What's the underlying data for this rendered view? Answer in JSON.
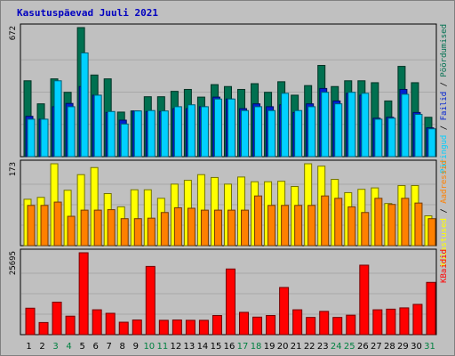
{
  "title": "Kasutuspäevad Juuli 2021",
  "colors": {
    "background": "#c0c0c0",
    "title": "#0000c0",
    "pages": "#007050",
    "files": "#0020d0",
    "hits": "#00d0ff",
    "visits": "#ffff00",
    "sites": "#ff8000",
    "kbytes": "#ff0000",
    "day_weekday": "#000000",
    "day_weekend": "#008040"
  },
  "legend": {
    "top": [
      {
        "label": "Päringud",
        "color": "#00d0ff"
      },
      {
        "sep": " / "
      },
      {
        "label": "Failid",
        "color": "#0020d0"
      },
      {
        "sep": " / "
      },
      {
        "label": "Pöördumised",
        "color": "#007050"
      }
    ],
    "middle": [
      {
        "label": "Külastused",
        "color": "#ffff00"
      },
      {
        "sep": " / "
      },
      {
        "label": "Aadressid",
        "color": "#ff8000"
      }
    ],
    "bottom": [
      {
        "label": "KBaidid",
        "color": "#ff0000"
      }
    ]
  },
  "chart_data": [
    {
      "type": "bar",
      "panel": "top",
      "ymax_label": "672",
      "ylim": [
        0,
        672
      ],
      "categories": [
        "1",
        "2",
        "3",
        "4",
        "5",
        "6",
        "7",
        "8",
        "9",
        "10",
        "11",
        "12",
        "13",
        "14",
        "15",
        "16",
        "17",
        "18",
        "19",
        "20",
        "21",
        "22",
        "23",
        "24",
        "25",
        "26",
        "27",
        "28",
        "29",
        "30",
        "31"
      ],
      "series": [
        {
          "name": "Pöördumised",
          "values": [
            395,
            275,
            405,
            335,
            672,
            425,
            405,
            232,
            238,
            312,
            312,
            340,
            350,
            310,
            375,
            365,
            350,
            380,
            335,
            390,
            320,
            370,
            475,
            365,
            395,
            395,
            385,
            290,
            470,
            385,
            205
          ]
        },
        {
          "name": "Failid",
          "values": [
            210,
            195,
            260,
            277,
            365,
            320,
            230,
            190,
            238,
            235,
            235,
            250,
            250,
            260,
            310,
            300,
            250,
            275,
            260,
            270,
            230,
            275,
            355,
            290,
            330,
            320,
            200,
            205,
            350,
            230,
            150
          ]
        },
        {
          "name": "Päringud",
          "values": [
            195,
            195,
            395,
            260,
            540,
            320,
            235,
            170,
            238,
            240,
            238,
            260,
            270,
            260,
            300,
            300,
            240,
            260,
            240,
            330,
            240,
            260,
            335,
            275,
            335,
            330,
            195,
            200,
            325,
            220,
            145
          ]
        }
      ]
    },
    {
      "type": "bar",
      "panel": "middle",
      "ymax_label": "173",
      "ylim": [
        0,
        173
      ],
      "categories": [
        "1",
        "2",
        "3",
        "4",
        "5",
        "6",
        "7",
        "8",
        "9",
        "10",
        "11",
        "12",
        "13",
        "14",
        "15",
        "16",
        "17",
        "18",
        "19",
        "20",
        "21",
        "22",
        "23",
        "24",
        "25",
        "26",
        "27",
        "28",
        "29",
        "30",
        "31"
      ],
      "series": [
        {
          "name": "Külastused",
          "values": [
            98,
            102,
            173,
            117,
            150,
            165,
            110,
            82,
            118,
            118,
            100,
            130,
            138,
            150,
            144,
            130,
            145,
            135,
            135,
            136,
            125,
            173,
            168,
            140,
            112,
            119,
            122,
            89,
            127,
            127,
            63
          ]
        },
        {
          "name": "Aadressid",
          "values": [
            85,
            85,
            92,
            62,
            75,
            75,
            76,
            57,
            57,
            58,
            70,
            80,
            79,
            75,
            75,
            75,
            75,
            105,
            85,
            85,
            85,
            85,
            105,
            100,
            82,
            70,
            100,
            87,
            100,
            90,
            57
          ]
        }
      ]
    },
    {
      "type": "bar",
      "panel": "bottom",
      "ymax_label": "25695",
      "ylim": [
        0,
        25695
      ],
      "categories": [
        "1",
        "2",
        "3",
        "4",
        "5",
        "6",
        "7",
        "8",
        "9",
        "10",
        "11",
        "12",
        "13",
        "14",
        "15",
        "16",
        "17",
        "18",
        "19",
        "20",
        "21",
        "22",
        "23",
        "24",
        "25",
        "26",
        "27",
        "28",
        "29",
        "30",
        "31"
      ],
      "series": [
        {
          "name": "KBaidid",
          "values": [
            8300,
            3800,
            10200,
            5800,
            25695,
            7800,
            6700,
            3900,
            4600,
            21400,
            4500,
            4600,
            4500,
            4500,
            6000,
            20600,
            7000,
            5500,
            6000,
            14800,
            7800,
            5400,
            7300,
            5400,
            6100,
            21800,
            7800,
            8000,
            8400,
            9500,
            16400
          ]
        }
      ]
    }
  ],
  "weekend_days": [
    "3",
    "4",
    "10",
    "11",
    "17",
    "18",
    "24",
    "25",
    "31"
  ]
}
